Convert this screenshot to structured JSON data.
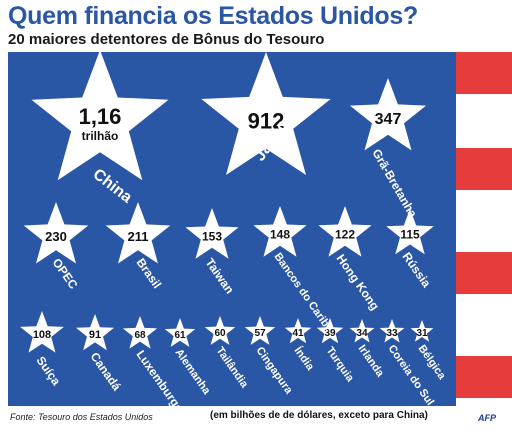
{
  "header": {
    "title": "Quem financia os Estados Unidos?",
    "subtitle": "20 maiores detentores de Bônus do Tesouro"
  },
  "footer": {
    "source": "Fonte: Tesouro dos Estados Unidos",
    "note": "(em bilhões de de dólares, exceto para China)",
    "logo": "AFP"
  },
  "colors": {
    "panel": "#2a56a6",
    "stripe": "#e63c3c",
    "star": "#ffffff"
  },
  "holders": [
    {
      "name": "China",
      "value": "1,16",
      "unit": "trilhão"
    },
    {
      "name": "Japão",
      "value": "912"
    },
    {
      "name": "Grã-Bretanha",
      "value": "347"
    },
    {
      "name": "OPEC",
      "value": "230"
    },
    {
      "name": "Brasil",
      "value": "211"
    },
    {
      "name": "Taiwan",
      "value": "153"
    },
    {
      "name": "Bancos do Caribe",
      "value": "148"
    },
    {
      "name": "Hong Kong",
      "value": "122"
    },
    {
      "name": "Rússia",
      "value": "115"
    },
    {
      "name": "Suíça",
      "value": "108"
    },
    {
      "name": "Canadá",
      "value": "91"
    },
    {
      "name": "Luxemburgo",
      "value": "68"
    },
    {
      "name": "Alemanha",
      "value": "61"
    },
    {
      "name": "Tailândia",
      "value": "60"
    },
    {
      "name": "Cingapura",
      "value": "57"
    },
    {
      "name": "Índia",
      "value": "41"
    },
    {
      "name": "Turquia",
      "value": "39"
    },
    {
      "name": "Irlanda",
      "value": "34"
    },
    {
      "name": "Coreia do Sul",
      "value": "33"
    },
    {
      "name": "Bélgica",
      "value": "31"
    }
  ]
}
